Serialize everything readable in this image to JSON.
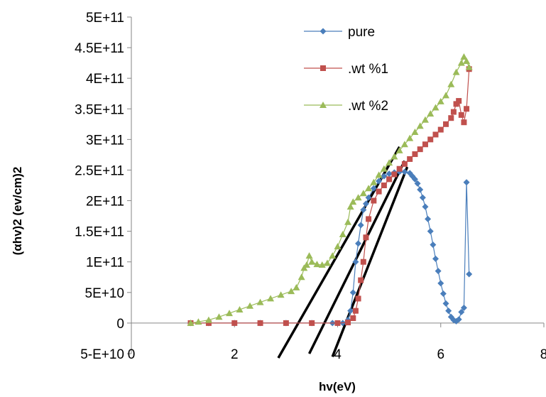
{
  "chart_data": {
    "type": "scatter",
    "title": "",
    "xlabel": "hv(eV)",
    "ylabel": "(αhv)2 (ev/cm)2",
    "xlim": [
      0,
      8
    ],
    "ylim": [
      -50000000000,
      500000000000
    ],
    "x_ticks": [
      {
        "v": 0,
        "label": "0"
      },
      {
        "v": 2,
        "label": "2"
      },
      {
        "v": 4,
        "label": "4"
      },
      {
        "v": 6,
        "label": "6"
      },
      {
        "v": 8,
        "label": "8"
      }
    ],
    "y_ticks": [
      {
        "v": -50000000000,
        "label": "5-E+10"
      },
      {
        "v": 0,
        "label": "0"
      },
      {
        "v": 50000000000,
        "label": "5E+10"
      },
      {
        "v": 100000000000,
        "label": "1E+11"
      },
      {
        "v": 150000000000,
        "label": "1.5E+11"
      },
      {
        "v": 200000000000,
        "label": "2E+11"
      },
      {
        "v": 250000000000,
        "label": "2.5E+11"
      },
      {
        "v": 300000000000,
        "label": "3E+11"
      },
      {
        "v": 350000000000,
        "label": "3.5E+11"
      },
      {
        "v": 400000000000,
        "label": "4E+11"
      },
      {
        "v": 450000000000,
        "label": "4.5E+11"
      },
      {
        "v": 500000000000,
        "label": "5E+11"
      }
    ],
    "legend_position": "top-right",
    "series": [
      {
        "name": "pure",
        "color": "#4a7ebb",
        "marker": "diamond",
        "points": [
          [
            1.15,
            0
          ],
          [
            1.5,
            0
          ],
          [
            2.0,
            0
          ],
          [
            2.5,
            0
          ],
          [
            3.0,
            0
          ],
          [
            3.5,
            0
          ],
          [
            3.9,
            0
          ],
          [
            4.1,
            0
          ],
          [
            4.2,
            5000000000
          ],
          [
            4.25,
            20000000000
          ],
          [
            4.3,
            50000000000
          ],
          [
            4.35,
            100000000000
          ],
          [
            4.4,
            130000000000
          ],
          [
            4.45,
            160000000000
          ],
          [
            4.5,
            185000000000
          ],
          [
            4.55,
            195000000000
          ],
          [
            4.6,
            205000000000
          ],
          [
            4.7,
            220000000000
          ],
          [
            4.8,
            232000000000
          ],
          [
            4.9,
            240000000000
          ],
          [
            5.0,
            244000000000
          ],
          [
            5.1,
            246000000000
          ],
          [
            5.2,
            247000000000
          ],
          [
            5.3,
            247000000000
          ],
          [
            5.4,
            245000000000
          ],
          [
            5.45,
            240000000000
          ],
          [
            5.5,
            235000000000
          ],
          [
            5.55,
            228000000000
          ],
          [
            5.6,
            218000000000
          ],
          [
            5.65,
            205000000000
          ],
          [
            5.7,
            190000000000
          ],
          [
            5.75,
            170000000000
          ],
          [
            5.8,
            150000000000
          ],
          [
            5.85,
            128000000000
          ],
          [
            5.9,
            105000000000
          ],
          [
            5.95,
            85000000000
          ],
          [
            6.0,
            65000000000
          ],
          [
            6.05,
            48000000000
          ],
          [
            6.1,
            32000000000
          ],
          [
            6.15,
            20000000000
          ],
          [
            6.2,
            10000000000
          ],
          [
            6.25,
            5000000000
          ],
          [
            6.3,
            3000000000
          ],
          [
            6.35,
            6000000000
          ],
          [
            6.4,
            18000000000
          ],
          [
            6.45,
            25000000000
          ],
          [
            6.5,
            230000000000
          ],
          [
            6.55,
            80000000000
          ]
        ]
      },
      {
        "name": ".wt %1",
        "color": "#c0504d",
        "marker": "square",
        "points": [
          [
            1.15,
            0
          ],
          [
            1.5,
            0
          ],
          [
            2.0,
            0
          ],
          [
            2.5,
            0
          ],
          [
            3.0,
            0
          ],
          [
            3.5,
            0
          ],
          [
            4.0,
            0
          ],
          [
            4.2,
            1000000000
          ],
          [
            4.3,
            8000000000
          ],
          [
            4.35,
            20000000000
          ],
          [
            4.4,
            40000000000
          ],
          [
            4.45,
            70000000000
          ],
          [
            4.5,
            100000000000
          ],
          [
            4.55,
            140000000000
          ],
          [
            4.6,
            170000000000
          ],
          [
            4.7,
            200000000000
          ],
          [
            4.8,
            215000000000
          ],
          [
            4.9,
            225000000000
          ],
          [
            5.0,
            235000000000
          ],
          [
            5.1,
            243000000000
          ],
          [
            5.2,
            252000000000
          ],
          [
            5.3,
            260000000000
          ],
          [
            5.4,
            268000000000
          ],
          [
            5.5,
            276000000000
          ],
          [
            5.6,
            284000000000
          ],
          [
            5.7,
            292000000000
          ],
          [
            5.8,
            300000000000
          ],
          [
            5.9,
            308000000000
          ],
          [
            6.0,
            316000000000
          ],
          [
            6.1,
            325000000000
          ],
          [
            6.2,
            335000000000
          ],
          [
            6.25,
            345000000000
          ],
          [
            6.3,
            358000000000
          ],
          [
            6.35,
            363000000000
          ],
          [
            6.4,
            340000000000
          ],
          [
            6.45,
            328000000000
          ],
          [
            6.5,
            350000000000
          ],
          [
            6.55,
            415000000000
          ]
        ]
      },
      {
        "name": ".wt %2",
        "color": "#9bbb59",
        "marker": "triangle",
        "points": [
          [
            1.15,
            0
          ],
          [
            1.3,
            2000000000
          ],
          [
            1.5,
            5000000000
          ],
          [
            1.7,
            10000000000
          ],
          [
            1.9,
            16000000000
          ],
          [
            2.1,
            22000000000
          ],
          [
            2.3,
            28000000000
          ],
          [
            2.5,
            34000000000
          ],
          [
            2.7,
            40000000000
          ],
          [
            2.9,
            46000000000
          ],
          [
            3.1,
            52000000000
          ],
          [
            3.2,
            58000000000
          ],
          [
            3.3,
            75000000000
          ],
          [
            3.35,
            90000000000
          ],
          [
            3.4,
            95000000000
          ],
          [
            3.45,
            110000000000
          ],
          [
            3.5,
            100000000000
          ],
          [
            3.6,
            96000000000
          ],
          [
            3.7,
            95000000000
          ],
          [
            3.8,
            98000000000
          ],
          [
            3.9,
            110000000000
          ],
          [
            4.0,
            125000000000
          ],
          [
            4.1,
            145000000000
          ],
          [
            4.2,
            165000000000
          ],
          [
            4.25,
            190000000000
          ],
          [
            4.3,
            198000000000
          ],
          [
            4.4,
            205000000000
          ],
          [
            4.5,
            212000000000
          ],
          [
            4.6,
            220000000000
          ],
          [
            4.7,
            230000000000
          ],
          [
            4.8,
            242000000000
          ],
          [
            4.9,
            252000000000
          ],
          [
            5.0,
            262000000000
          ],
          [
            5.1,
            272000000000
          ],
          [
            5.2,
            282000000000
          ],
          [
            5.3,
            292000000000
          ],
          [
            5.4,
            302000000000
          ],
          [
            5.5,
            312000000000
          ],
          [
            5.6,
            322000000000
          ],
          [
            5.7,
            332000000000
          ],
          [
            5.8,
            342000000000
          ],
          [
            5.9,
            352000000000
          ],
          [
            6.0,
            362000000000
          ],
          [
            6.1,
            372000000000
          ],
          [
            6.2,
            390000000000
          ],
          [
            6.3,
            410000000000
          ],
          [
            6.4,
            425000000000
          ],
          [
            6.45,
            435000000000
          ],
          [
            6.5,
            428000000000
          ],
          [
            6.55,
            418000000000
          ]
        ]
      }
    ],
    "fit_lines": [
      {
        "color": "#000000",
        "points": [
          [
            2.85,
            -57000000000
          ],
          [
            5.2,
            288000000000
          ]
        ]
      },
      {
        "color": "#000000",
        "points": [
          [
            3.45,
            -50000000000
          ],
          [
            5.3,
            265000000000
          ]
        ]
      },
      {
        "color": "#000000",
        "points": [
          [
            3.9,
            -55000000000
          ],
          [
            5.35,
            255000000000
          ]
        ]
      }
    ]
  }
}
